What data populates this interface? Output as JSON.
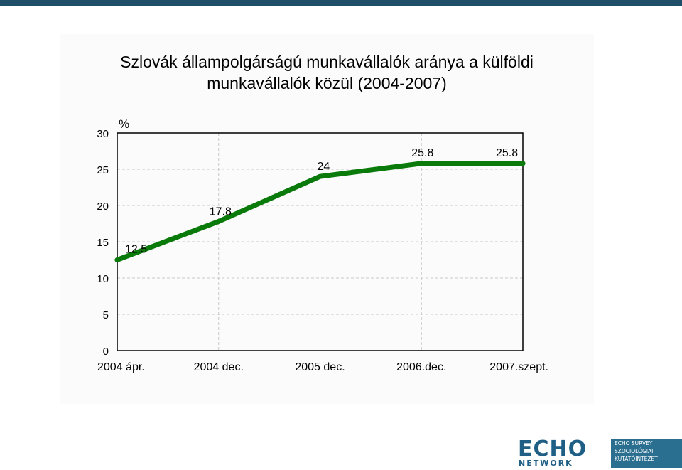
{
  "title": {
    "line1": "Szlovák állampolgárságú munkavállalók aránya a külföldi",
    "line2": "munkavállalók közül (2004-2007)"
  },
  "chart_data": {
    "type": "line",
    "title": "Szlovák állampolgárságú munkavállalók aránya a külföldi munkavállalók közül (2004-2007)",
    "categories": [
      "2004 ápr.",
      "2004 dec.",
      "2005 dec.",
      "2006.dec.",
      "2007.szept."
    ],
    "series": [
      {
        "values": [
          12.5,
          17.8,
          24,
          25.8,
          25.8
        ],
        "color": "#0a7a0a"
      }
    ],
    "data_labels": [
      "12.5",
      "17.8",
      "24",
      "25.8",
      "25.8"
    ],
    "ylabel": "%",
    "ylim": [
      0,
      30
    ],
    "yticks": [
      0,
      5,
      10,
      15,
      20,
      25,
      30
    ],
    "grid": "dashed",
    "legend": "none"
  },
  "logo": {
    "word1": "ECHO",
    "word2": "NETWORK",
    "survey_lines": [
      "ECHO SURVEY",
      "SZOCIOLÓGIAI",
      "KUTATÓINTÉZET"
    ],
    "brand_color": "#1f5f86",
    "panel_color": "#2a6f8f"
  }
}
